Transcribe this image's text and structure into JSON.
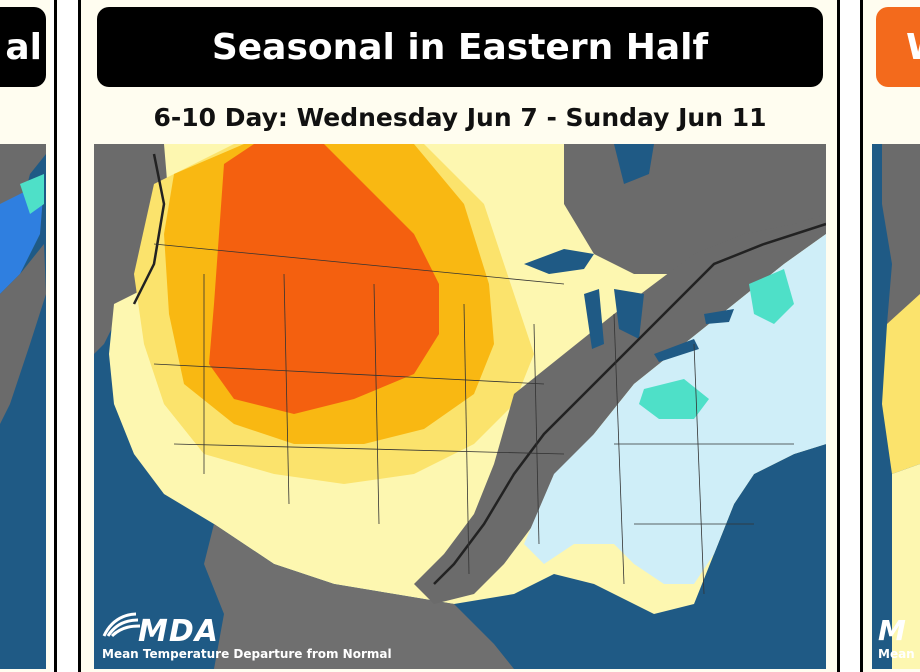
{
  "main_panel": {
    "title": "Seasonal in Eastern Half",
    "subtitle": "6-10 Day: Wednesday Jun 7 - Sunday Jun 11",
    "logo": "MDA",
    "map_caption": "Mean Temperature Departure from Normal"
  },
  "left_panel": {
    "title_fragment": "al"
  },
  "right_panel": {
    "title_fragment": "W",
    "logo_fragment": "M",
    "caption_fragment": "Mean"
  },
  "colors": {
    "ocean": "#1f5a85",
    "normal_gray": "#6b6b6b",
    "light_yellow": "#fdf7b0",
    "yellow": "#fbe36c",
    "gold": "#f9b812",
    "orange": "#f4600f",
    "light_blue": "#cfeef8",
    "teal": "#4ee0c8",
    "land_gray": "#6f6f6f",
    "banner_black": "#000000",
    "banner_orange": "#f36a1c"
  }
}
